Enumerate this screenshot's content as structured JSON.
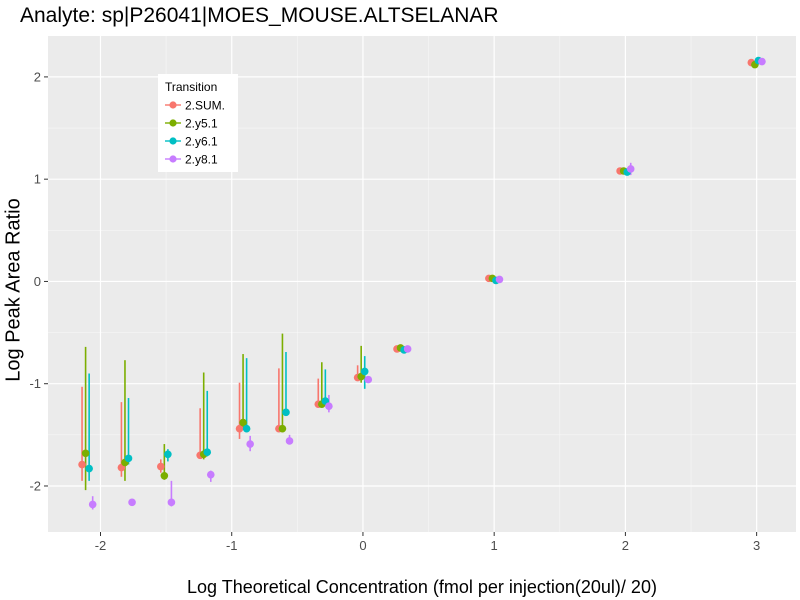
{
  "chart_data": {
    "type": "scatter",
    "title": "Analyte: sp|P26041|MOES_MOUSE.ALTSELANAR",
    "xlabel": "Log Theoretical Concentration (fmol per injection(20ul)/ 20)",
    "ylabel": "Log Peak Area Ratio",
    "xlim": [
      -2.4,
      3.3
    ],
    "ylim": [
      -2.45,
      2.4
    ],
    "x_ticks": [
      -2,
      -1,
      0,
      1,
      2,
      3
    ],
    "y_ticks": [
      -2,
      -1,
      0,
      1,
      2
    ],
    "x_tick_labels": [
      "-2",
      "-1",
      "0",
      "1",
      "2",
      "3"
    ],
    "y_tick_labels": [
      "-2",
      "-1",
      "0",
      "1",
      "2"
    ],
    "grid": true,
    "legend": {
      "title": "Transition",
      "position": "top-left"
    },
    "series": [
      {
        "name": "2.SUM.",
        "color": "#F8766D",
        "points": [
          {
            "x": -2.1,
            "y": -1.79,
            "lo": -1.95,
            "hi": -1.03
          },
          {
            "x": -1.8,
            "y": -1.82,
            "lo": -1.91,
            "hi": -1.18
          },
          {
            "x": -1.5,
            "y": -1.81,
            "lo": -1.87,
            "hi": -1.74
          },
          {
            "x": -1.2,
            "y": -1.7,
            "lo": -1.72,
            "hi": -1.24
          },
          {
            "x": -0.9,
            "y": -1.44,
            "lo": -1.54,
            "hi": -0.99
          },
          {
            "x": -0.6,
            "y": -1.44,
            "lo": -1.46,
            "hi": -0.85
          },
          {
            "x": -0.3,
            "y": -1.2,
            "lo": -1.22,
            "hi": -0.95
          },
          {
            "x": 0.0,
            "y": -0.94,
            "lo": -0.96,
            "hi": -0.82
          },
          {
            "x": 0.3,
            "y": -0.66,
            "lo": -0.68,
            "hi": -0.64
          },
          {
            "x": 1.0,
            "y": 0.03,
            "lo": 0.01,
            "hi": 0.05
          },
          {
            "x": 2.0,
            "y": 1.08,
            "lo": 1.06,
            "hi": 1.1
          },
          {
            "x": 3.0,
            "y": 2.14,
            "lo": 2.12,
            "hi": 2.16
          }
        ]
      },
      {
        "name": "2.y5.1",
        "color": "#7CAE00",
        "points": [
          {
            "x": -2.1,
            "y": -1.68,
            "lo": -2.04,
            "hi": -0.64
          },
          {
            "x": -1.8,
            "y": -1.77,
            "lo": -1.95,
            "hi": -0.77
          },
          {
            "x": -1.5,
            "y": -1.9,
            "lo": -1.94,
            "hi": -1.59
          },
          {
            "x": -1.2,
            "y": -1.69,
            "lo": -1.74,
            "hi": -0.89
          },
          {
            "x": -0.9,
            "y": -1.38,
            "lo": -1.45,
            "hi": -0.71
          },
          {
            "x": -0.6,
            "y": -1.44,
            "lo": -1.47,
            "hi": -0.51
          },
          {
            "x": -0.3,
            "y": -1.2,
            "lo": -1.23,
            "hi": -0.79
          },
          {
            "x": 0.0,
            "y": -0.93,
            "lo": -0.99,
            "hi": -0.63
          },
          {
            "x": 0.3,
            "y": -0.65,
            "lo": -0.67,
            "hi": -0.63
          },
          {
            "x": 1.0,
            "y": 0.03,
            "lo": 0.01,
            "hi": 0.05
          },
          {
            "x": 2.0,
            "y": 1.08,
            "lo": 1.06,
            "hi": 1.1
          },
          {
            "x": 3.0,
            "y": 2.12,
            "lo": 2.1,
            "hi": 2.14
          }
        ]
      },
      {
        "name": "2.y6.1",
        "color": "#00BFC4",
        "points": [
          {
            "x": -2.1,
            "y": -1.83,
            "lo": -1.95,
            "hi": -0.9
          },
          {
            "x": -1.8,
            "y": -1.73,
            "lo": -1.79,
            "hi": -1.14
          },
          {
            "x": -1.5,
            "y": -1.69,
            "lo": -1.76,
            "hi": -1.64
          },
          {
            "x": -1.2,
            "y": -1.67,
            "lo": -1.71,
            "hi": -1.07
          },
          {
            "x": -0.9,
            "y": -1.44,
            "lo": -1.46,
            "hi": -0.75
          },
          {
            "x": -0.6,
            "y": -1.28,
            "lo": -1.3,
            "hi": -0.69
          },
          {
            "x": -0.3,
            "y": -1.17,
            "lo": -1.2,
            "hi": -0.86
          },
          {
            "x": 0.0,
            "y": -0.88,
            "lo": -1.05,
            "hi": -0.73
          },
          {
            "x": 0.3,
            "y": -0.67,
            "lo": -0.69,
            "hi": -0.65
          },
          {
            "x": 1.0,
            "y": 0.01,
            "lo": -0.01,
            "hi": 0.03
          },
          {
            "x": 2.0,
            "y": 1.07,
            "lo": 1.05,
            "hi": 1.09
          },
          {
            "x": 3.0,
            "y": 2.16,
            "lo": 2.14,
            "hi": 2.18
          }
        ]
      },
      {
        "name": "2.y8.1",
        "color": "#C77CFF",
        "points": [
          {
            "x": -2.1,
            "y": -2.18,
            "lo": -2.23,
            "hi": -2.1
          },
          {
            "x": -1.8,
            "y": -2.16,
            "lo": -2.18,
            "hi": -2.14
          },
          {
            "x": -1.5,
            "y": -2.16,
            "lo": -2.2,
            "hi": -1.95
          },
          {
            "x": -1.2,
            "y": -1.89,
            "lo": -1.96,
            "hi": -1.85
          },
          {
            "x": -0.9,
            "y": -1.59,
            "lo": -1.66,
            "hi": -1.51
          },
          {
            "x": -0.6,
            "y": -1.56,
            "lo": -1.58,
            "hi": -1.5
          },
          {
            "x": -0.3,
            "y": -1.22,
            "lo": -1.28,
            "hi": -1.11
          },
          {
            "x": 0.0,
            "y": -0.96,
            "lo": -0.98,
            "hi": -0.94
          },
          {
            "x": 0.3,
            "y": -0.66,
            "lo": -0.68,
            "hi": -0.64
          },
          {
            "x": 1.0,
            "y": 0.02,
            "lo": 0.0,
            "hi": 0.04
          },
          {
            "x": 2.0,
            "y": 1.1,
            "lo": 1.04,
            "hi": 1.16
          },
          {
            "x": 3.0,
            "y": 2.15,
            "lo": 2.13,
            "hi": 2.17
          }
        ]
      }
    ]
  }
}
